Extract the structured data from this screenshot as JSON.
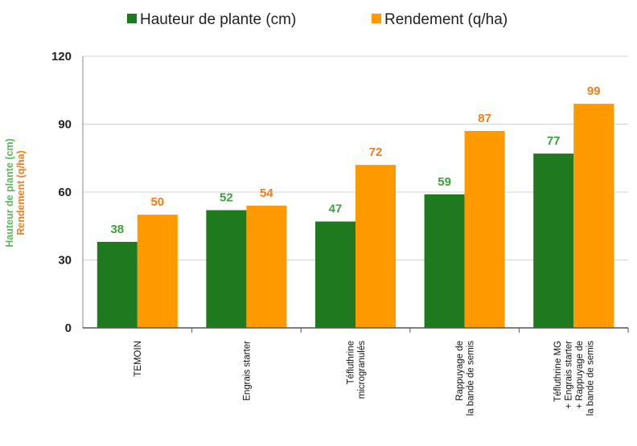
{
  "chart_data": {
    "type": "bar",
    "categories": [
      [
        "TEMOIN"
      ],
      [
        "Engrais starter"
      ],
      [
        "Téfluthrine",
        "microgranulés"
      ],
      [
        "Rappuyage de",
        "la bande de semis"
      ],
      [
        "Téfluthrine MG",
        "+ Engrais starter",
        "+ Rappuyage de",
        "la bande de semis"
      ]
    ],
    "series": [
      {
        "name": "Hauteur de plante (cm)",
        "values": [
          38,
          52,
          47,
          59,
          77
        ],
        "color": "#1f7a1f",
        "label_color": "#3aa23a"
      },
      {
        "name": "Rendement (q/ha)",
        "values": [
          50,
          54,
          72,
          87,
          99
        ],
        "color": "#ff9900",
        "label_color": "#f07f1a"
      }
    ],
    "ylabel": [
      "Hauteur de plante (cm)",
      "Rendement (q/ha)"
    ],
    "ylim": [
      0,
      120
    ],
    "yticks": [
      "0",
      "30",
      "60",
      "90",
      "120"
    ],
    "grid": true,
    "legend_position": "top"
  }
}
